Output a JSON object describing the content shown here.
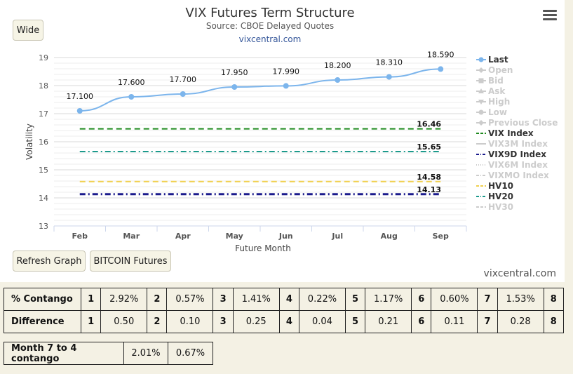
{
  "header": {
    "title": "VIX Futures Term Structure",
    "subtitle": "Source: CBOE Delayed Quotes",
    "link": "vixcentral.com"
  },
  "buttons": {
    "wide": "Wide",
    "refresh": "Refresh Graph",
    "bitcoin": "BITCOIN Futures"
  },
  "credit": "vixcentral.com",
  "colors": {
    "last": "#7cb5ec",
    "vix_index": "#1e8a1e",
    "vix9d_index": "#1a1a8c",
    "hv10": "#f0d050",
    "hv20": "#1c9a8c",
    "inactive": "#cccccc"
  },
  "chart_data": {
    "type": "line",
    "title": "VIX Futures Term Structure",
    "subtitle": "Source: CBOE Delayed Quotes",
    "xlabel": "Future Month",
    "ylabel": "Volatility",
    "ylim": [
      13,
      19
    ],
    "yticks": [
      "13",
      "14",
      "15",
      "16",
      "17",
      "18",
      "19"
    ],
    "categories": [
      "Feb",
      "Mar",
      "Apr",
      "May",
      "Jun",
      "Jul",
      "Aug",
      "Sep"
    ],
    "series": [
      {
        "name": "Last",
        "values": [
          17.1,
          17.6,
          17.7,
          17.95,
          17.99,
          18.2,
          18.31,
          18.59
        ],
        "labels": [
          "17.100",
          "17.600",
          "17.700",
          "17.950",
          "17.990",
          "18.200",
          "18.310",
          "18.590"
        ]
      },
      {
        "name": "VIX Index",
        "value": 16.46,
        "label": "16.46",
        "style": "dash"
      },
      {
        "name": "VIX9D Index",
        "value": 14.13,
        "label": "14.13",
        "style": "dashdot"
      },
      {
        "name": "HV10",
        "value": 14.58,
        "label": "14.58",
        "style": "dash"
      },
      {
        "name": "HV20",
        "value": 15.65,
        "label": "15.65",
        "style": "dashdot"
      }
    ],
    "legend": {
      "placement": "right",
      "items": [
        {
          "name": "Last",
          "active": true,
          "symbol": "circle"
        },
        {
          "name": "Open",
          "active": false,
          "symbol": "diamond"
        },
        {
          "name": "Bid",
          "active": false,
          "symbol": "square"
        },
        {
          "name": "Ask",
          "active": false,
          "symbol": "triangle"
        },
        {
          "name": "High",
          "active": false,
          "symbol": "triangle-down"
        },
        {
          "name": "Low",
          "active": false,
          "symbol": "circle"
        },
        {
          "name": "Previous Close",
          "active": false,
          "symbol": "diamond"
        },
        {
          "name": "VIX Index",
          "active": true,
          "symbol": "dash"
        },
        {
          "name": "VIX3M Index",
          "active": false,
          "symbol": "solid"
        },
        {
          "name": "VIX9D Index",
          "active": true,
          "symbol": "dashdot"
        },
        {
          "name": "VIX6M Index",
          "active": false,
          "symbol": "dot"
        },
        {
          "name": "VIXMO Index",
          "active": false,
          "symbol": "dashdot"
        },
        {
          "name": "HV10",
          "active": true,
          "symbol": "dash"
        },
        {
          "name": "HV20",
          "active": true,
          "symbol": "dashdot"
        },
        {
          "name": "HV30",
          "active": false,
          "symbol": "dash"
        }
      ]
    }
  },
  "contango_table": {
    "rows": [
      {
        "label": "% Contango",
        "cells": [
          "1",
          "2.92%",
          "2",
          "0.57%",
          "3",
          "1.41%",
          "4",
          "0.22%",
          "5",
          "1.17%",
          "6",
          "0.60%",
          "7",
          "1.53%",
          "8"
        ]
      },
      {
        "label": "Difference",
        "cells": [
          "1",
          "0.50",
          "2",
          "0.10",
          "3",
          "0.25",
          "4",
          "0.04",
          "5",
          "0.21",
          "6",
          "0.11",
          "7",
          "0.28",
          "8"
        ]
      }
    ]
  },
  "month_table": {
    "label": "Month 7 to 4 contango",
    "values": [
      "2.01%",
      "0.67%"
    ]
  }
}
